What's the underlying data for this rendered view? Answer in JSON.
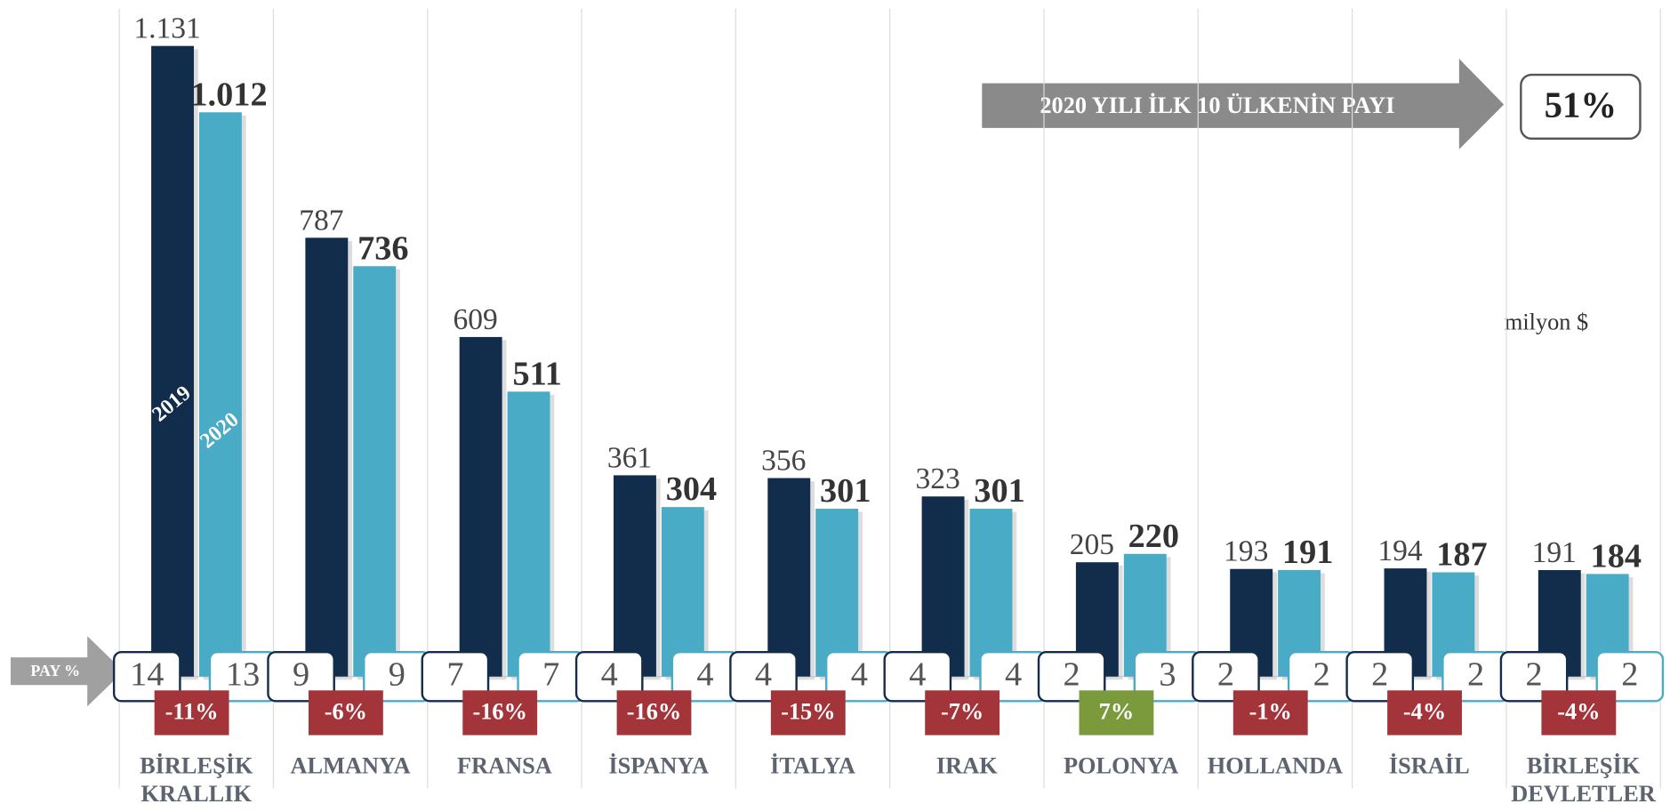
{
  "chart_data": {
    "type": "bar",
    "unit_label": "milyon $",
    "categories": [
      "BİRLEŞİK KRALLIK",
      "ALMANYA",
      "FRANSA",
      "İSPANYA",
      "İTALYA",
      "IRAK",
      "POLONYA",
      "HOLLANDA",
      "İSRAİL",
      "BİRLEŞİK DEVLETLER"
    ],
    "series": [
      {
        "name": "2019",
        "color": "#122c4b",
        "values": [
          1131,
          787,
          609,
          361,
          356,
          323,
          205,
          193,
          194,
          191
        ],
        "value_labels": [
          "1.131",
          "787",
          "609",
          "361",
          "356",
          "323",
          "205",
          "193",
          "194",
          "191"
        ],
        "share": [
          14,
          9,
          7,
          4,
          4,
          4,
          2,
          2,
          2,
          2
        ]
      },
      {
        "name": "2020",
        "color": "#4aabc6",
        "values": [
          1012,
          736,
          511,
          304,
          301,
          301,
          220,
          191,
          187,
          184
        ],
        "value_labels": [
          "1.012",
          "736",
          "511",
          "304",
          "301",
          "301",
          "220",
          "191",
          "187",
          "184"
        ],
        "share": [
          13,
          9,
          7,
          4,
          4,
          4,
          3,
          2,
          2,
          2
        ]
      }
    ],
    "share_label": "PAY %",
    "change": {
      "values": [
        -11,
        -6,
        -16,
        -16,
        -15,
        -7,
        7,
        -1,
        -4,
        -4
      ],
      "value_labels": [
        "-11%",
        "-6%",
        "-16%",
        "-16%",
        "-15%",
        "-7%",
        "7%",
        "-1%",
        "-4%",
        "-4%"
      ],
      "negative_color": "#a3353a",
      "positive_color": "#7a9a3c"
    },
    "annotation": {
      "text": "2020 YILI İLK 10 ÜLKENİN PAYI",
      "value": 51,
      "value_label": "51%"
    }
  }
}
